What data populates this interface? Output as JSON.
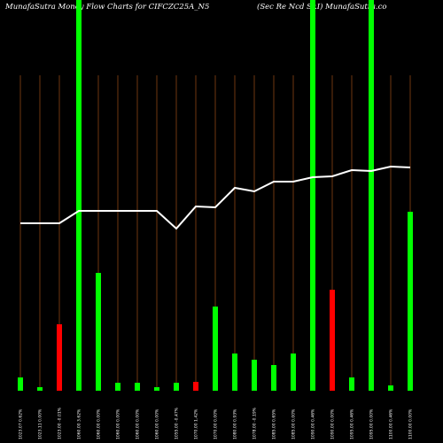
{
  "chart_data": {
    "type": "bar",
    "title": "MunafaSutra Money Flow Charts for CIFCZC25A_N5",
    "subtitle": "(Sec Re Ncd Sr.I) MunafaSutra.co",
    "categories": [
      "1023.07 0.62%",
      "1023.11 0.00%",
      "1023.00 -0.01%",
      "1060.00 3.62%",
      "1060.00 0.00%",
      "1060.00 0.00%",
      "1060.00 0.00%",
      "1060.00 0.00%",
      "1055.00 -0.47%",
      "1070.00 1.42%",
      "1070.00 0.00%",
      "1080.00 0.93%",
      "1078.00 -0.19%",
      "1085.00 0.65%",
      "1085.00 0.00%",
      "1090.00 0.46%",
      "1090.00 0.00%",
      "1095.00 0.46%",
      "1095.00 0.00%",
      "1100.00 0.46%",
      "1100.00 0.00%"
    ],
    "values": [
      15,
      4,
      75,
      441,
      133,
      9,
      9,
      4,
      9,
      10,
      95,
      42,
      35,
      29,
      42,
      441,
      114,
      15,
      441,
      6,
      202
    ],
    "colors": [
      "#00ff00",
      "#00ff00",
      "#ff0000",
      "#00ff00",
      "#00ff00",
      "#00ff00",
      "#00ff00",
      "#00ff00",
      "#00ff00",
      "#ff0000",
      "#00ff00",
      "#00ff00",
      "#00ff00",
      "#00ff00",
      "#00ff00",
      "#00ff00",
      "#ff0000",
      "#00ff00",
      "#00ff00",
      "#00ff00",
      "#00ff00"
    ],
    "line_values": [
      189,
      189,
      189,
      203,
      203,
      203,
      203,
      203,
      183,
      208,
      207,
      229,
      225,
      236,
      236,
      241,
      242,
      249,
      248,
      253,
      252
    ],
    "line_color": "#ffffff",
    "grid_color": "#8b4513",
    "ylim": [
      0,
      441
    ]
  }
}
